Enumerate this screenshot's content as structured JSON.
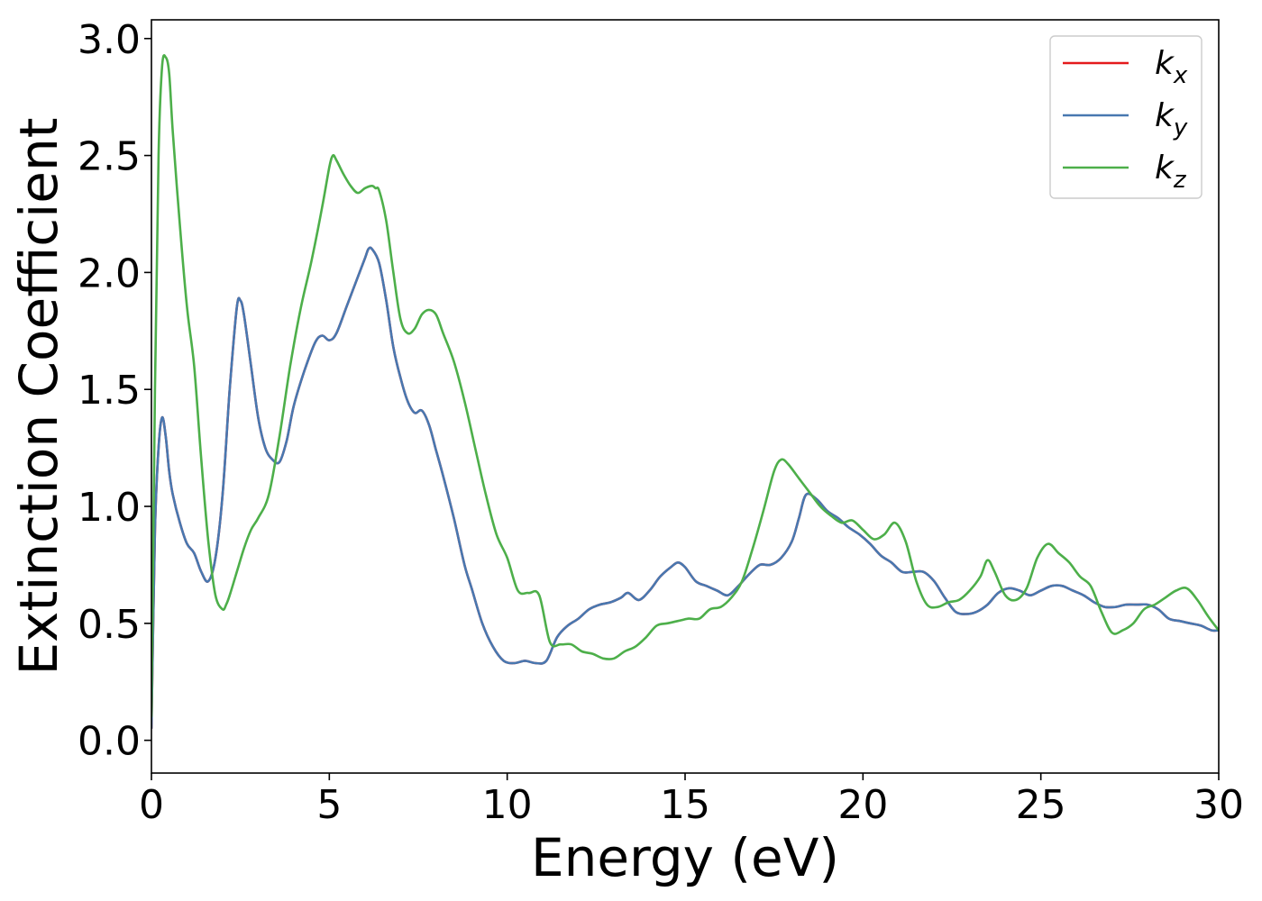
{
  "chart_data": {
    "type": "line",
    "title": "",
    "xlabel": "Energy (eV)",
    "ylabel": "Extinction Coefficient",
    "xlim": [
      0,
      30
    ],
    "ylim": [
      -0.14,
      3.08
    ],
    "xticks": [
      0,
      5,
      10,
      15,
      20,
      25,
      30
    ],
    "xtick_labels": [
      "0",
      "5",
      "10",
      "15",
      "20",
      "25",
      "30"
    ],
    "yticks": [
      0.0,
      0.5,
      1.0,
      1.5,
      2.0,
      2.5,
      3.0
    ],
    "ytick_labels": [
      "0.0",
      "0.5",
      "1.0",
      "1.5",
      "2.0",
      "2.5",
      "3.0"
    ],
    "grid": false,
    "legend_position": "top-right",
    "series": [
      {
        "name": "k_x",
        "label_base": "k",
        "label_sub": "x",
        "color": "#e41a1c",
        "x": [
          0,
          0.1,
          0.2,
          0.3,
          0.4,
          0.5,
          0.6,
          0.8,
          1.0,
          1.2,
          1.4,
          1.6,
          1.8,
          2.0,
          2.2,
          2.4,
          2.5,
          2.6,
          2.8,
          3.0,
          3.2,
          3.4,
          3.6,
          3.8,
          4.0,
          4.3,
          4.6,
          4.8,
          5.0,
          5.2,
          5.5,
          5.8,
          6.0,
          6.1,
          6.2,
          6.4,
          6.6,
          6.8,
          7.0,
          7.2,
          7.4,
          7.6,
          7.8,
          8.0,
          8.2,
          8.5,
          8.8,
          9.0,
          9.3,
          9.6,
          9.9,
          10.2,
          10.5,
          10.8,
          11.1,
          11.4,
          11.7,
          12.0,
          12.3,
          12.6,
          12.9,
          13.2,
          13.4,
          13.7,
          14.0,
          14.3,
          14.6,
          14.8,
          15.0,
          15.3,
          15.6,
          15.9,
          16.2,
          16.5,
          16.8,
          17.1,
          17.4,
          17.7,
          18.0,
          18.2,
          18.4,
          18.7,
          19.0,
          19.3,
          19.6,
          19.9,
          20.2,
          20.5,
          20.8,
          21.1,
          21.4,
          21.7,
          22.0,
          22.3,
          22.6,
          22.9,
          23.2,
          23.5,
          23.8,
          24.1,
          24.4,
          24.7,
          25.0,
          25.3,
          25.6,
          25.9,
          26.2,
          26.5,
          26.8,
          27.1,
          27.4,
          27.7,
          28.0,
          28.3,
          28.6,
          28.9,
          29.2,
          29.5,
          29.8,
          30
        ],
        "y": [
          0.05,
          0.9,
          1.25,
          1.38,
          1.3,
          1.15,
          1.05,
          0.93,
          0.84,
          0.8,
          0.72,
          0.68,
          0.78,
          1.05,
          1.5,
          1.85,
          1.88,
          1.82,
          1.6,
          1.38,
          1.25,
          1.2,
          1.19,
          1.28,
          1.43,
          1.58,
          1.7,
          1.73,
          1.71,
          1.74,
          1.86,
          1.98,
          2.06,
          2.1,
          2.1,
          2.04,
          1.88,
          1.68,
          1.55,
          1.45,
          1.4,
          1.41,
          1.35,
          1.24,
          1.13,
          0.95,
          0.75,
          0.65,
          0.5,
          0.4,
          0.34,
          0.33,
          0.34,
          0.33,
          0.34,
          0.44,
          0.49,
          0.52,
          0.56,
          0.58,
          0.59,
          0.61,
          0.63,
          0.6,
          0.64,
          0.7,
          0.74,
          0.76,
          0.74,
          0.68,
          0.66,
          0.64,
          0.62,
          0.66,
          0.71,
          0.75,
          0.75,
          0.78,
          0.85,
          0.95,
          1.05,
          1.03,
          0.98,
          0.95,
          0.91,
          0.88,
          0.84,
          0.79,
          0.76,
          0.72,
          0.72,
          0.72,
          0.68,
          0.61,
          0.55,
          0.54,
          0.55,
          0.58,
          0.63,
          0.65,
          0.64,
          0.62,
          0.64,
          0.66,
          0.66,
          0.64,
          0.62,
          0.59,
          0.57,
          0.57,
          0.58,
          0.58,
          0.58,
          0.56,
          0.52,
          0.51,
          0.5,
          0.49,
          0.47,
          0.47
        ]
      },
      {
        "name": "k_y",
        "label_base": "k",
        "label_sub": "y",
        "color": "#4878b0",
        "x": [
          0,
          0.1,
          0.2,
          0.3,
          0.4,
          0.5,
          0.6,
          0.8,
          1.0,
          1.2,
          1.4,
          1.6,
          1.8,
          2.0,
          2.2,
          2.4,
          2.5,
          2.6,
          2.8,
          3.0,
          3.2,
          3.4,
          3.6,
          3.8,
          4.0,
          4.3,
          4.6,
          4.8,
          5.0,
          5.2,
          5.5,
          5.8,
          6.0,
          6.1,
          6.2,
          6.4,
          6.6,
          6.8,
          7.0,
          7.2,
          7.4,
          7.6,
          7.8,
          8.0,
          8.2,
          8.5,
          8.8,
          9.0,
          9.3,
          9.6,
          9.9,
          10.2,
          10.5,
          10.8,
          11.1,
          11.4,
          11.7,
          12.0,
          12.3,
          12.6,
          12.9,
          13.2,
          13.4,
          13.7,
          14.0,
          14.3,
          14.6,
          14.8,
          15.0,
          15.3,
          15.6,
          15.9,
          16.2,
          16.5,
          16.8,
          17.1,
          17.4,
          17.7,
          18.0,
          18.2,
          18.4,
          18.7,
          19.0,
          19.3,
          19.6,
          19.9,
          20.2,
          20.5,
          20.8,
          21.1,
          21.4,
          21.7,
          22.0,
          22.3,
          22.6,
          22.9,
          23.2,
          23.5,
          23.8,
          24.1,
          24.4,
          24.7,
          25.0,
          25.3,
          25.6,
          25.9,
          26.2,
          26.5,
          26.8,
          27.1,
          27.4,
          27.7,
          28.0,
          28.3,
          28.6,
          28.9,
          29.2,
          29.5,
          29.8,
          30
        ],
        "y": [
          0.05,
          0.9,
          1.25,
          1.38,
          1.3,
          1.15,
          1.05,
          0.93,
          0.84,
          0.8,
          0.72,
          0.68,
          0.78,
          1.05,
          1.5,
          1.85,
          1.88,
          1.82,
          1.6,
          1.38,
          1.25,
          1.2,
          1.19,
          1.28,
          1.43,
          1.58,
          1.7,
          1.73,
          1.71,
          1.74,
          1.86,
          1.98,
          2.06,
          2.1,
          2.1,
          2.04,
          1.88,
          1.68,
          1.55,
          1.45,
          1.4,
          1.41,
          1.35,
          1.24,
          1.13,
          0.95,
          0.75,
          0.65,
          0.5,
          0.4,
          0.34,
          0.33,
          0.34,
          0.33,
          0.34,
          0.44,
          0.49,
          0.52,
          0.56,
          0.58,
          0.59,
          0.61,
          0.63,
          0.6,
          0.64,
          0.7,
          0.74,
          0.76,
          0.74,
          0.68,
          0.66,
          0.64,
          0.62,
          0.66,
          0.71,
          0.75,
          0.75,
          0.78,
          0.85,
          0.95,
          1.05,
          1.03,
          0.98,
          0.95,
          0.91,
          0.88,
          0.84,
          0.79,
          0.76,
          0.72,
          0.72,
          0.72,
          0.68,
          0.61,
          0.55,
          0.54,
          0.55,
          0.58,
          0.63,
          0.65,
          0.64,
          0.62,
          0.64,
          0.66,
          0.66,
          0.64,
          0.62,
          0.59,
          0.57,
          0.57,
          0.58,
          0.58,
          0.58,
          0.56,
          0.52,
          0.51,
          0.5,
          0.49,
          0.47,
          0.47
        ]
      },
      {
        "name": "k_z",
        "label_base": "k",
        "label_sub": "z",
        "color": "#4daf4a",
        "x": [
          0,
          0.1,
          0.2,
          0.3,
          0.4,
          0.5,
          0.6,
          0.8,
          1.0,
          1.2,
          1.4,
          1.6,
          1.8,
          2.0,
          2.1,
          2.2,
          2.4,
          2.6,
          2.8,
          3.0,
          3.3,
          3.6,
          3.9,
          4.2,
          4.5,
          4.8,
          5.0,
          5.1,
          5.2,
          5.4,
          5.6,
          5.8,
          6.0,
          6.2,
          6.3,
          6.4,
          6.6,
          6.8,
          7.0,
          7.2,
          7.4,
          7.6,
          7.8,
          8.0,
          8.2,
          8.5,
          8.8,
          9.1,
          9.4,
          9.7,
          10.0,
          10.3,
          10.6,
          10.9,
          11.2,
          11.5,
          11.8,
          12.1,
          12.4,
          12.7,
          13.0,
          13.3,
          13.6,
          13.9,
          14.2,
          14.5,
          14.8,
          15.1,
          15.4,
          15.7,
          16.0,
          16.3,
          16.6,
          16.9,
          17.2,
          17.5,
          17.7,
          17.9,
          18.2,
          18.5,
          18.8,
          19.1,
          19.4,
          19.7,
          20.0,
          20.3,
          20.6,
          20.9,
          21.2,
          21.5,
          21.8,
          22.1,
          22.4,
          22.7,
          23.0,
          23.3,
          23.5,
          23.7,
          24.0,
          24.3,
          24.6,
          24.9,
          25.2,
          25.5,
          25.8,
          26.1,
          26.4,
          26.7,
          27.0,
          27.3,
          27.6,
          27.9,
          28.2,
          28.5,
          28.8,
          29.1,
          29.4,
          29.7,
          30
        ],
        "y": [
          0.1,
          1.5,
          2.5,
          2.88,
          2.92,
          2.85,
          2.6,
          2.2,
          1.85,
          1.6,
          1.2,
          0.85,
          0.62,
          0.56,
          0.58,
          0.62,
          0.72,
          0.82,
          0.9,
          0.95,
          1.05,
          1.3,
          1.6,
          1.85,
          2.05,
          2.28,
          2.45,
          2.5,
          2.48,
          2.42,
          2.37,
          2.34,
          2.36,
          2.37,
          2.36,
          2.35,
          2.22,
          2.0,
          1.8,
          1.74,
          1.76,
          1.82,
          1.84,
          1.82,
          1.74,
          1.62,
          1.45,
          1.25,
          1.05,
          0.88,
          0.78,
          0.64,
          0.63,
          0.62,
          0.42,
          0.41,
          0.41,
          0.38,
          0.37,
          0.35,
          0.35,
          0.38,
          0.4,
          0.44,
          0.49,
          0.5,
          0.51,
          0.52,
          0.52,
          0.56,
          0.57,
          0.61,
          0.68,
          0.82,
          0.98,
          1.15,
          1.2,
          1.18,
          1.12,
          1.06,
          1.0,
          0.96,
          0.93,
          0.94,
          0.9,
          0.86,
          0.88,
          0.93,
          0.85,
          0.68,
          0.58,
          0.57,
          0.59,
          0.6,
          0.64,
          0.7,
          0.77,
          0.72,
          0.62,
          0.6,
          0.65,
          0.78,
          0.84,
          0.8,
          0.76,
          0.7,
          0.66,
          0.55,
          0.46,
          0.47,
          0.5,
          0.56,
          0.58,
          0.61,
          0.64,
          0.65,
          0.6,
          0.53,
          0.47
        ]
      }
    ]
  }
}
